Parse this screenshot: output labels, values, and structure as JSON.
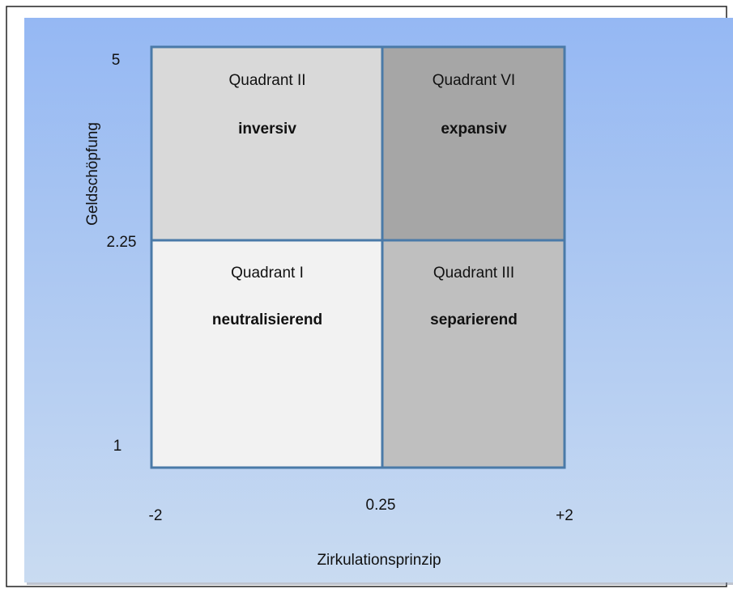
{
  "y_axis": {
    "label": "Geldschöpfung",
    "ticks": [
      "5",
      "2.25",
      "1"
    ]
  },
  "x_axis": {
    "label": "Zirkulationsprinzip",
    "ticks": [
      "-2",
      "0.25",
      "+2"
    ]
  },
  "quadrants": [
    {
      "name": "Quadrant II",
      "label": "inversiv"
    },
    {
      "name": "Quadrant VI",
      "label": "expansiv"
    },
    {
      "name": "Quadrant I",
      "label": "neutralisierend"
    },
    {
      "name": "Quadrant III",
      "label": "separierend"
    }
  ]
}
